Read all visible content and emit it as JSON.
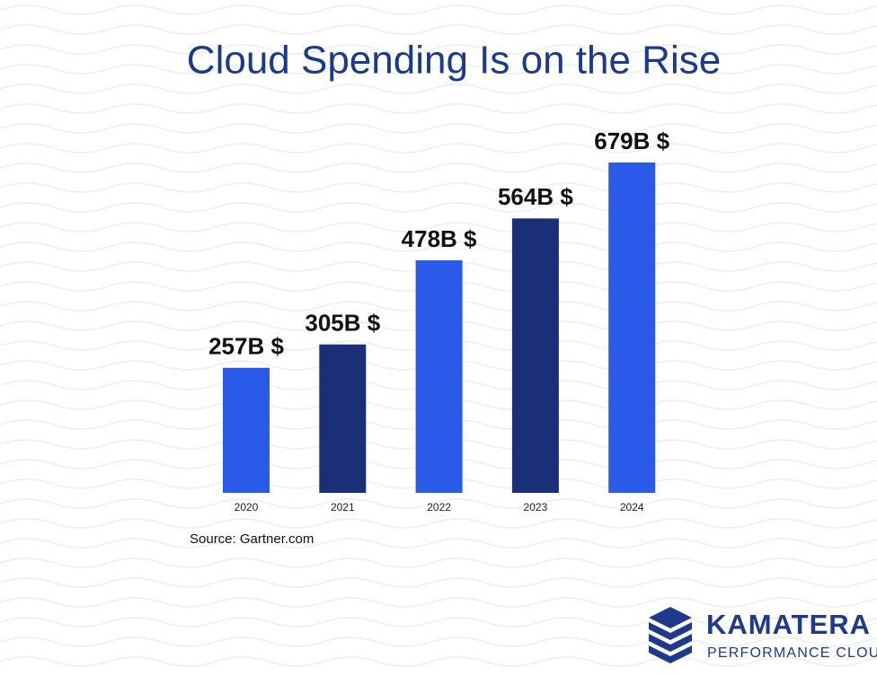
{
  "chart_data": {
    "type": "bar",
    "title": "Cloud Spending Is on the Rise",
    "categories": [
      "2020",
      "2021",
      "2022",
      "2023",
      "2024"
    ],
    "values": [
      257,
      305,
      478,
      564,
      679
    ],
    "value_labels": [
      "257B $",
      "305B $",
      "478B $",
      "564B $",
      "679B $"
    ],
    "colors": [
      "#2b5ae8",
      "#1a2f78",
      "#2b5ae8",
      "#1a2f78",
      "#2b5ae8"
    ],
    "source": "Source: Gartner.com"
  },
  "logo": {
    "name": "KAMATERA",
    "tagline": "PERFORMANCE CLOUD"
  }
}
